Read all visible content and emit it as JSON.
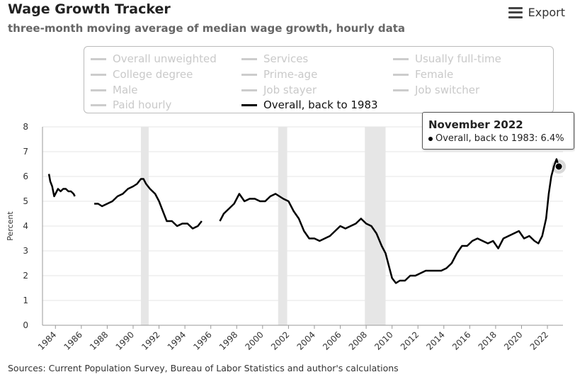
{
  "header": {
    "title": "Wage Growth Tracker",
    "subtitle": "three-month moving average of median wage growth, hourly data",
    "export_label": "Export"
  },
  "legend": {
    "items": [
      {
        "label": "Overall unweighted",
        "active": false
      },
      {
        "label": "Services",
        "active": false
      },
      {
        "label": "Usually full-time",
        "active": false
      },
      {
        "label": "College degree",
        "active": false
      },
      {
        "label": "Prime-age",
        "active": false
      },
      {
        "label": "Female",
        "active": false
      },
      {
        "label": "Male",
        "active": false
      },
      {
        "label": "Job stayer",
        "active": false
      },
      {
        "label": "Job switcher",
        "active": false
      },
      {
        "label": "Paid hourly",
        "active": false
      },
      {
        "label": "Overall, back to 1983",
        "active": true
      }
    ]
  },
  "tooltip": {
    "title": "November 2022",
    "series": "Overall, back to 1983",
    "value_text": "6.4%"
  },
  "source": "Sources: Current Population Survey, Bureau of Labor Statistics and author's calculations",
  "colors": {
    "line": "#000000",
    "recession": "#e6e6e6",
    "grid": "#e6e6e6",
    "inactive_legend": "#c9c9c9"
  },
  "chart_data": {
    "type": "line",
    "title": "Wage Growth Tracker",
    "subtitle": "three-month moving average of median wage growth, hourly data",
    "ylabel": "Percent",
    "xlabel": "",
    "ylim": [
      0,
      8
    ],
    "xlim": [
      1983,
      2023.2
    ],
    "yticks": [
      0,
      1,
      2,
      3,
      4,
      5,
      6,
      7,
      8
    ],
    "xticks": [
      "1984",
      "1986",
      "1988",
      "1990",
      "1992",
      "1994",
      "1996",
      "1998",
      "2000",
      "2002",
      "2004",
      "2006",
      "2008",
      "2010",
      "2012",
      "2014",
      "2016",
      "2018",
      "2020",
      "2022"
    ],
    "grid": "horizontal",
    "recessions": [
      [
        1990.6,
        1991.2
      ],
      [
        2001.2,
        2001.9
      ],
      [
        2007.9,
        2009.5
      ]
    ],
    "series": [
      {
        "name": "Overall, back to 1983",
        "segments": [
          [
            [
              1983.5,
              6.1
            ],
            [
              1983.6,
              5.8
            ],
            [
              1983.75,
              5.6
            ],
            [
              1983.9,
              5.2
            ],
            [
              1984.0,
              5.3
            ],
            [
              1984.2,
              5.5
            ],
            [
              1984.4,
              5.4
            ],
            [
              1984.6,
              5.5
            ],
            [
              1984.8,
              5.5
            ],
            [
              1985.0,
              5.4
            ],
            [
              1985.2,
              5.4
            ],
            [
              1985.4,
              5.3
            ],
            [
              1985.5,
              5.2
            ]
          ],
          [
            [
              1987.0,
              4.9
            ],
            [
              1987.3,
              4.9
            ],
            [
              1987.6,
              4.8
            ],
            [
              1988.0,
              4.9
            ],
            [
              1988.4,
              5.0
            ],
            [
              1988.8,
              5.2
            ],
            [
              1989.2,
              5.3
            ],
            [
              1989.6,
              5.5
            ],
            [
              1990.0,
              5.6
            ],
            [
              1990.3,
              5.7
            ],
            [
              1990.6,
              5.9
            ],
            [
              1990.8,
              5.9
            ],
            [
              1991.0,
              5.7
            ],
            [
              1991.3,
              5.5
            ],
            [
              1991.7,
              5.3
            ],
            [
              1992.0,
              5.0
            ],
            [
              1992.3,
              4.6
            ],
            [
              1992.6,
              4.2
            ],
            [
              1993.0,
              4.2
            ],
            [
              1993.4,
              4.0
            ],
            [
              1993.8,
              4.1
            ],
            [
              1994.2,
              4.1
            ],
            [
              1994.6,
              3.9
            ],
            [
              1995.0,
              4.0
            ],
            [
              1995.3,
              4.2
            ]
          ],
          [
            [
              1996.7,
              4.2
            ],
            [
              1997.0,
              4.5
            ],
            [
              1997.4,
              4.7
            ],
            [
              1997.8,
              4.9
            ],
            [
              1998.2,
              5.3
            ],
            [
              1998.6,
              5.0
            ],
            [
              1999.0,
              5.1
            ],
            [
              1999.4,
              5.1
            ],
            [
              1999.8,
              5.0
            ],
            [
              2000.2,
              5.0
            ],
            [
              2000.6,
              5.2
            ],
            [
              2001.0,
              5.3
            ],
            [
              2001.3,
              5.2
            ],
            [
              2001.6,
              5.1
            ],
            [
              2002.0,
              5.0
            ],
            [
              2002.4,
              4.6
            ],
            [
              2002.8,
              4.3
            ],
            [
              2003.2,
              3.8
            ],
            [
              2003.6,
              3.5
            ],
            [
              2004.0,
              3.5
            ],
            [
              2004.4,
              3.4
            ],
            [
              2004.8,
              3.5
            ],
            [
              2005.2,
              3.6
            ],
            [
              2005.6,
              3.8
            ],
            [
              2006.0,
              4.0
            ],
            [
              2006.4,
              3.9
            ],
            [
              2006.8,
              4.0
            ],
            [
              2007.2,
              4.1
            ],
            [
              2007.6,
              4.3
            ],
            [
              2008.0,
              4.1
            ],
            [
              2008.4,
              4.0
            ],
            [
              2008.8,
              3.7
            ],
            [
              2009.2,
              3.2
            ],
            [
              2009.5,
              2.9
            ],
            [
              2009.8,
              2.3
            ],
            [
              2010.0,
              1.9
            ],
            [
              2010.3,
              1.7
            ],
            [
              2010.6,
              1.8
            ],
            [
              2011.0,
              1.8
            ],
            [
              2011.4,
              2.0
            ],
            [
              2011.8,
              2.0
            ],
            [
              2012.2,
              2.1
            ],
            [
              2012.6,
              2.2
            ],
            [
              2013.0,
              2.2
            ],
            [
              2013.4,
              2.2
            ],
            [
              2013.8,
              2.2
            ],
            [
              2014.2,
              2.3
            ],
            [
              2014.6,
              2.5
            ],
            [
              2015.0,
              2.9
            ],
            [
              2015.4,
              3.2
            ],
            [
              2015.8,
              3.2
            ],
            [
              2016.2,
              3.4
            ],
            [
              2016.6,
              3.5
            ],
            [
              2017.0,
              3.4
            ],
            [
              2017.4,
              3.3
            ],
            [
              2017.8,
              3.4
            ],
            [
              2018.2,
              3.1
            ],
            [
              2018.6,
              3.5
            ],
            [
              2019.0,
              3.6
            ],
            [
              2019.4,
              3.7
            ],
            [
              2019.8,
              3.8
            ],
            [
              2020.2,
              3.5
            ],
            [
              2020.6,
              3.6
            ],
            [
              2021.0,
              3.4
            ],
            [
              2021.3,
              3.3
            ],
            [
              2021.6,
              3.6
            ],
            [
              2021.9,
              4.3
            ],
            [
              2022.1,
              5.3
            ],
            [
              2022.3,
              6.0
            ],
            [
              2022.5,
              6.4
            ],
            [
              2022.7,
              6.7
            ],
            [
              2022.88,
              6.4
            ]
          ]
        ]
      }
    ],
    "highlight": {
      "x": 2022.88,
      "y": 6.4,
      "label": "November 2022"
    }
  }
}
